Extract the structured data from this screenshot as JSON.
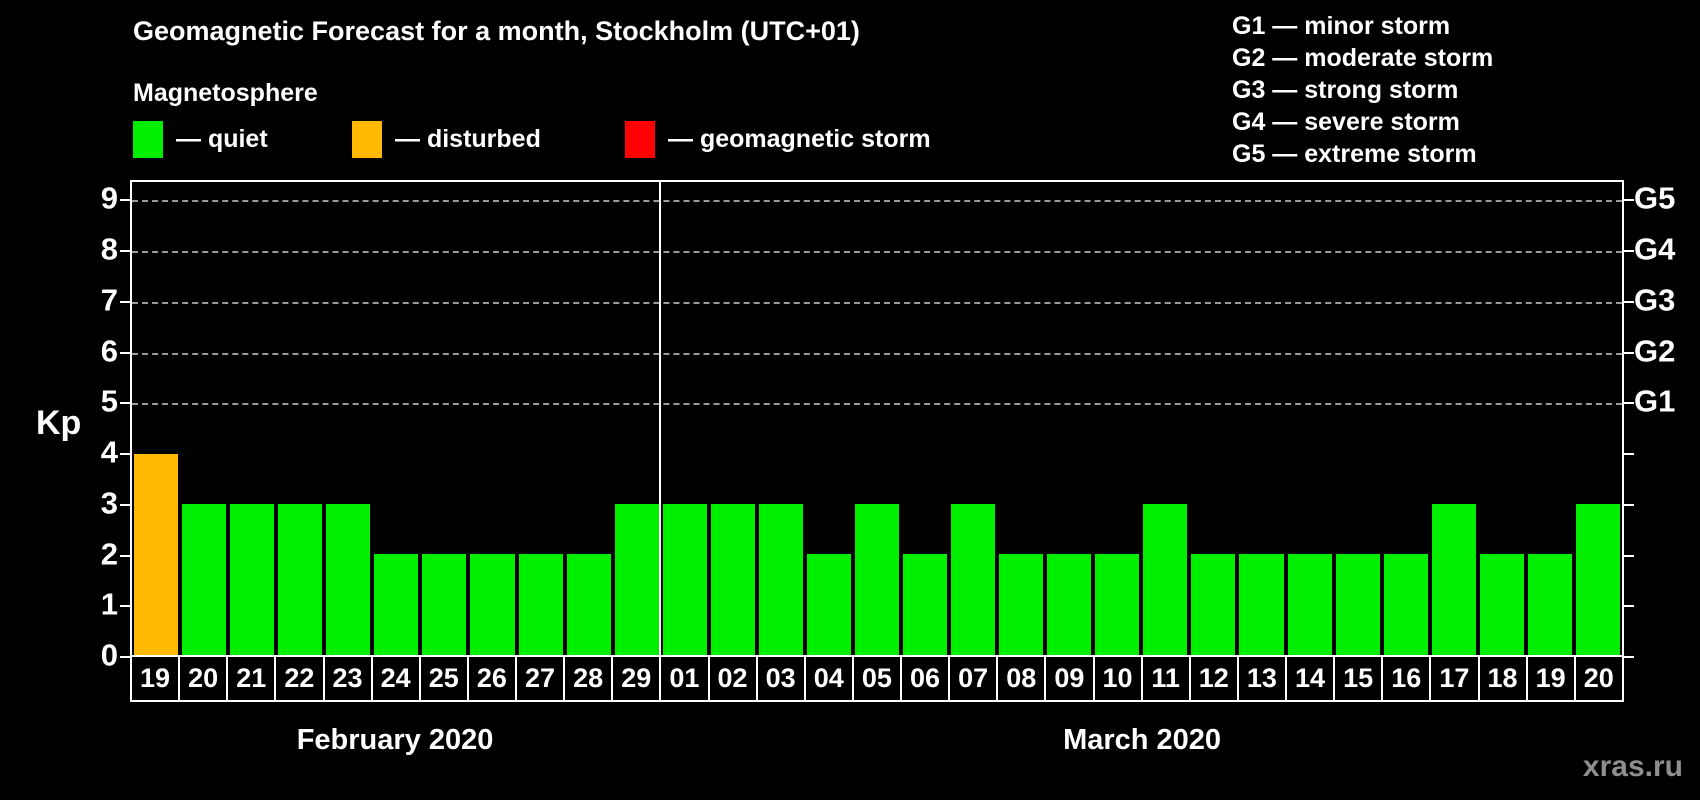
{
  "page": {
    "title": "Geomagnetic Forecast for a month, Stockholm (UTC+01)",
    "subtitle": "Magnetosphere",
    "watermark": "xras.ru"
  },
  "legend": [
    {
      "name": "quiet",
      "label": "— quiet",
      "color": "#00ee00"
    },
    {
      "name": "disturbed",
      "label": "— disturbed",
      "color": "#ffb900"
    },
    {
      "name": "geomagnetic-storm",
      "label": "— geomagnetic storm",
      "color": "#ff0000"
    }
  ],
  "g_scale": [
    "G1 — minor storm",
    "G2 — moderate storm",
    "G3 — strong storm",
    "G4 — severe storm",
    "G5 — extreme storm"
  ],
  "chart_data": {
    "type": "bar",
    "title": "Geomagnetic Forecast for a month, Stockholm (UTC+01)",
    "ylabel": "Kp",
    "ylim": [
      0,
      9.4
    ],
    "y_ticks": [
      0,
      1,
      2,
      3,
      4,
      5,
      6,
      7,
      8,
      9
    ],
    "gridlines_kp": [
      5,
      6,
      7,
      8,
      9
    ],
    "grid": "dashed",
    "legend_position": "top-left",
    "right_axis": [
      {
        "kp": 5,
        "label": "G1"
      },
      {
        "kp": 6,
        "label": "G2"
      },
      {
        "kp": 7,
        "label": "G3"
      },
      {
        "kp": 8,
        "label": "G4"
      },
      {
        "kp": 9,
        "label": "G5"
      }
    ],
    "status_colors": {
      "quiet": "#00ee00",
      "disturbed": "#ffb900",
      "storm": "#ff0000"
    },
    "months": [
      {
        "label": "February 2020",
        "days": [
          {
            "day": "19",
            "kp": 4,
            "status": "disturbed"
          },
          {
            "day": "20",
            "kp": 3,
            "status": "quiet"
          },
          {
            "day": "21",
            "kp": 3,
            "status": "quiet"
          },
          {
            "day": "22",
            "kp": 3,
            "status": "quiet"
          },
          {
            "day": "23",
            "kp": 3,
            "status": "quiet"
          },
          {
            "day": "24",
            "kp": 2,
            "status": "quiet"
          },
          {
            "day": "25",
            "kp": 2,
            "status": "quiet"
          },
          {
            "day": "26",
            "kp": 2,
            "status": "quiet"
          },
          {
            "day": "27",
            "kp": 2,
            "status": "quiet"
          },
          {
            "day": "28",
            "kp": 2,
            "status": "quiet"
          },
          {
            "day": "29",
            "kp": 3,
            "status": "quiet"
          }
        ]
      },
      {
        "label": "March 2020",
        "days": [
          {
            "day": "01",
            "kp": 3,
            "status": "quiet"
          },
          {
            "day": "02",
            "kp": 3,
            "status": "quiet"
          },
          {
            "day": "03",
            "kp": 3,
            "status": "quiet"
          },
          {
            "day": "04",
            "kp": 2,
            "status": "quiet"
          },
          {
            "day": "05",
            "kp": 3,
            "status": "quiet"
          },
          {
            "day": "06",
            "kp": 2,
            "status": "quiet"
          },
          {
            "day": "07",
            "kp": 3,
            "status": "quiet"
          },
          {
            "day": "08",
            "kp": 2,
            "status": "quiet"
          },
          {
            "day": "09",
            "kp": 2,
            "status": "quiet"
          },
          {
            "day": "10",
            "kp": 2,
            "status": "quiet"
          },
          {
            "day": "11",
            "kp": 3,
            "status": "quiet"
          },
          {
            "day": "12",
            "kp": 2,
            "status": "quiet"
          },
          {
            "day": "13",
            "kp": 2,
            "status": "quiet"
          },
          {
            "day": "14",
            "kp": 2,
            "status": "quiet"
          },
          {
            "day": "15",
            "kp": 2,
            "status": "quiet"
          },
          {
            "day": "16",
            "kp": 2,
            "status": "quiet"
          },
          {
            "day": "17",
            "kp": 3,
            "status": "quiet"
          },
          {
            "day": "18",
            "kp": 2,
            "status": "quiet"
          },
          {
            "day": "19",
            "kp": 2,
            "status": "quiet"
          },
          {
            "day": "20",
            "kp": 3,
            "status": "quiet"
          }
        ]
      }
    ]
  }
}
